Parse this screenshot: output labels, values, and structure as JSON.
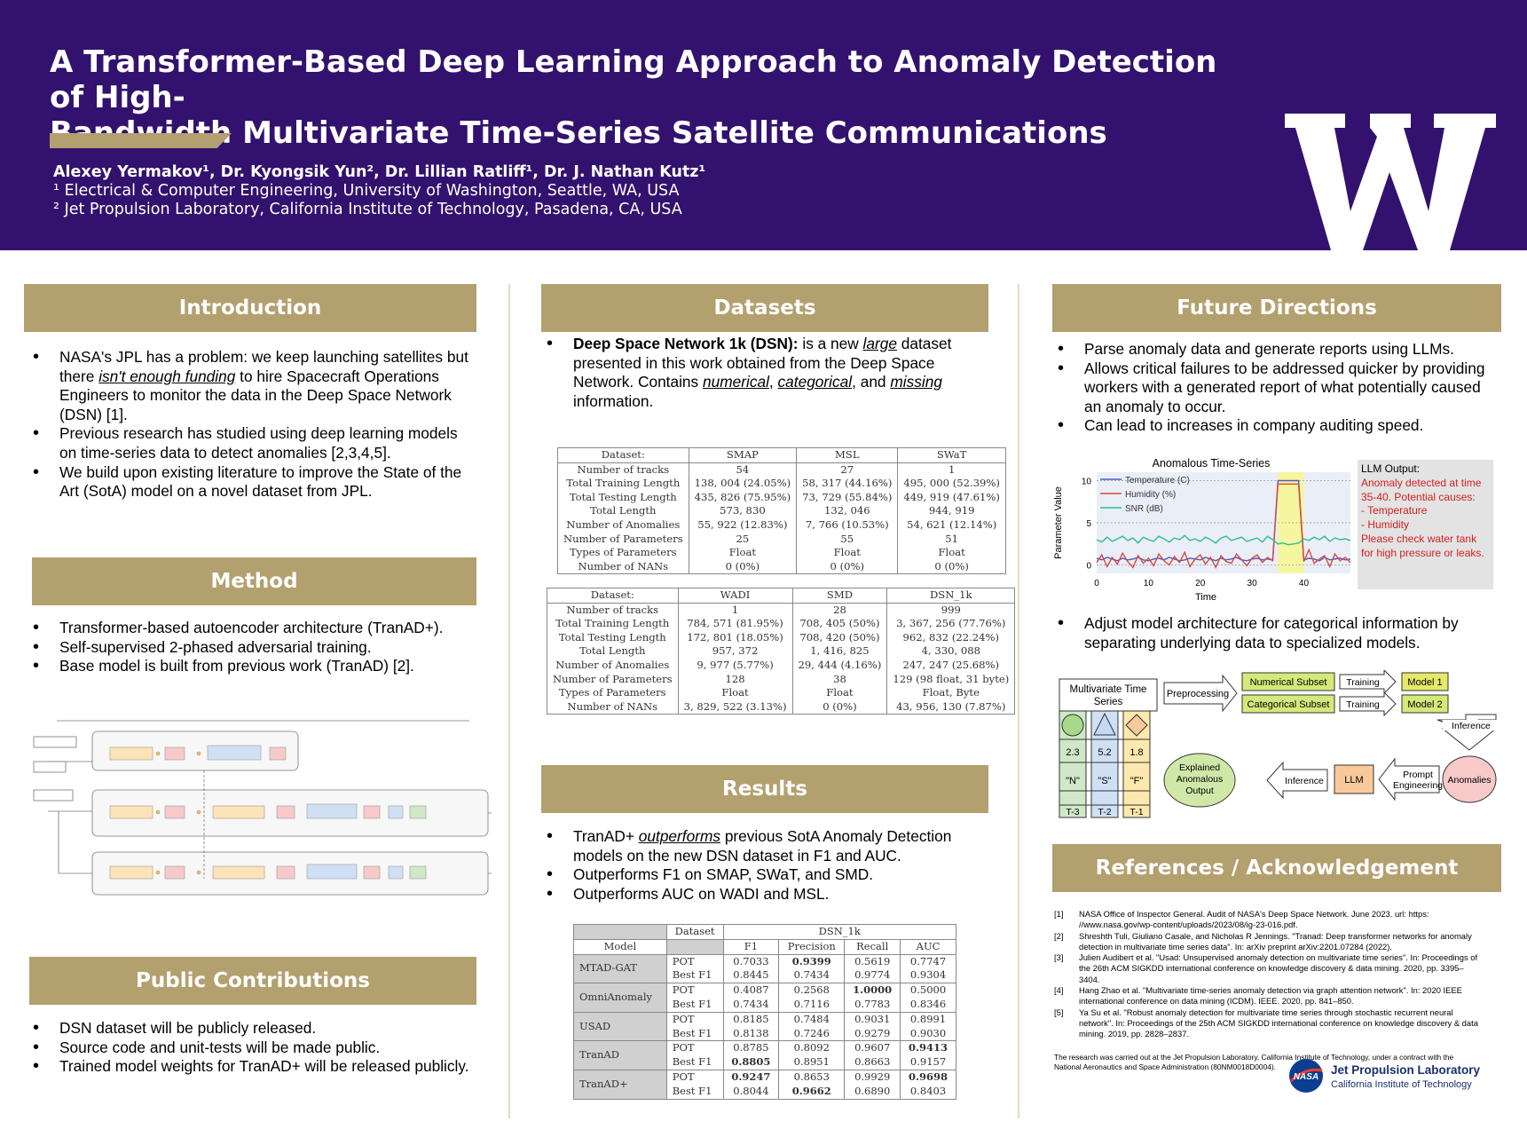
{
  "header": {
    "title_line1": "A Transformer-Based Deep Learning Approach to Anomaly Detection of High-",
    "title_line2": "Bandwidth Multivariate Time-Series Satellite Communications",
    "authors": "Alexey Yermakov¹, Dr. Kyongsik Yun², Dr. Lillian Ratliff¹, Dr. J. Nathan Kutz¹",
    "affiliation1": "¹ Electrical & Computer Engineering, University of Washington, Seattle, WA, USA",
    "affiliation2": "² Jet Propulsion Laboratory, California Institute of Technology, Pasadena, CA, USA",
    "logo": "W"
  },
  "colors": {
    "header_bg": "#32126e",
    "gold": "#b3a06f",
    "separator": "#e8d9bd"
  },
  "introduction": {
    "heading": "Introduction",
    "b1_pre": "NASA's JPL has a problem: we keep launching satellites but there ",
    "b1_em": "isn't enough funding",
    "b1_post": " to hire Spacecraft Operations Engineers to monitor the data in the Deep Space Network (DSN) [1].",
    "b2": "Previous research has studied using deep learning models on time-series data to detect anomalies [2,3,4,5].",
    "b3": "We build upon existing literature to improve the State of the Art (SotA) model on a novel dataset from JPL."
  },
  "method": {
    "heading": "Method",
    "b1": "Transformer-based autoencoder architecture (TranAD+).",
    "b2": "Self-supervised 2-phased adversarial training.",
    "b3": "Base model is built from previous work (TranAD) [2]."
  },
  "public": {
    "heading": "Public Contributions",
    "b1": "DSN dataset will be publicly released.",
    "b2": "Source code and unit-tests will be made public.",
    "b3": "Trained model weights for TranAD+ will be released publicly."
  },
  "datasets": {
    "heading": "Datasets",
    "intro_bold": "Deep Space Network 1k (DSN):",
    "intro_a": " is a new ",
    "intro_large": "large",
    "intro_b": " dataset presented in this work obtained from the Deep Space Network. Contains ",
    "intro_num": "numerical",
    "intro_c": ", ",
    "intro_cat": "categorical",
    "intro_d": ", and ",
    "intro_miss": "missing",
    "intro_e": " information.",
    "table1": {
      "headers": [
        "Dataset:",
        "SMAP",
        "MSL",
        "SWaT"
      ],
      "rows": [
        [
          "Number of tracks",
          "54",
          "27",
          "1"
        ],
        [
          "Total Training Length",
          "138, 004 (24.05%)",
          "58, 317 (44.16%)",
          "495, 000 (52.39%)"
        ],
        [
          "Total Testing Length",
          "435, 826 (75.95%)",
          "73, 729 (55.84%)",
          "449, 919 (47.61%)"
        ],
        [
          "Total Length",
          "573, 830",
          "132, 046",
          "944, 919"
        ],
        [
          "Number of Anomalies",
          "55, 922 (12.83%)",
          "7, 766 (10.53%)",
          "54, 621 (12.14%)"
        ],
        [
          "Number of Parameters",
          "25",
          "55",
          "51"
        ],
        [
          "Types of Parameters",
          "Float",
          "Float",
          "Float"
        ],
        [
          "Number of NANs",
          "0 (0%)",
          "0 (0%)",
          "0 (0%)"
        ]
      ]
    },
    "table2": {
      "headers": [
        "Dataset:",
        "WADI",
        "SMD",
        "DSN_1k"
      ],
      "rows": [
        [
          "Number of tracks",
          "1",
          "28",
          "999"
        ],
        [
          "Total Training Length",
          "784, 571 (81.95%)",
          "708, 405 (50%)",
          "3, 367, 256 (77.76%)"
        ],
        [
          "Total Testing Length",
          "172, 801 (18.05%)",
          "708, 420 (50%)",
          "962, 832 (22.24%)"
        ],
        [
          "Total Length",
          "957, 372",
          "1, 416, 825",
          "4, 330, 088"
        ],
        [
          "Number of Anomalies",
          "9, 977 (5.77%)",
          "29, 444 (4.16%)",
          "247, 247 (25.68%)"
        ],
        [
          "Number of Parameters",
          "128",
          "38",
          "129 (98 float, 31 byte)"
        ],
        [
          "Types of Parameters",
          "Float",
          "Float",
          "Float, Byte"
        ],
        [
          "Number of NANs",
          "3, 829, 522 (3.13%)",
          "0 (0%)",
          "43, 956, 130 (7.87%)"
        ]
      ]
    }
  },
  "results": {
    "heading": "Results",
    "b1_pre": "TranAD+ ",
    "b1_em": "outperforms",
    "b1_post": " previous SotA Anomaly Detection models on the new DSN dataset in F1 and AUC.",
    "b2": "Outperforms F1 on SMAP, SWaT, and SMD.",
    "b3": "Outperforms AUC on WADI and MSL.",
    "table": {
      "dataset_label": "Dataset",
      "dataset_name": "DSN_1k",
      "model_label": "Model",
      "metrics": [
        "F1",
        "Precision",
        "Recall",
        "AUC"
      ],
      "models": [
        {
          "name": "MTAD-GAT",
          "rows": [
            {
              "method": "POT",
              "v": [
                "0.7033",
                "0.9399",
                "0.5619",
                "0.7747"
              ],
              "bold": [
                false,
                true,
                false,
                false
              ]
            },
            {
              "method": "Best F1",
              "v": [
                "0.8445",
                "0.7434",
                "0.9774",
                "0.9304"
              ],
              "bold": [
                false,
                false,
                false,
                false
              ]
            }
          ]
        },
        {
          "name": "OmniAnomaly",
          "rows": [
            {
              "method": "POT",
              "v": [
                "0.4087",
                "0.2568",
                "1.0000",
                "0.5000"
              ],
              "bold": [
                false,
                false,
                true,
                false
              ]
            },
            {
              "method": "Best F1",
              "v": [
                "0.7434",
                "0.7116",
                "0.7783",
                "0.8346"
              ],
              "bold": [
                false,
                false,
                false,
                false
              ]
            }
          ]
        },
        {
          "name": "USAD",
          "rows": [
            {
              "method": "POT",
              "v": [
                "0.8185",
                "0.7484",
                "0.9031",
                "0.8991"
              ],
              "bold": [
                false,
                false,
                false,
                false
              ]
            },
            {
              "method": "Best F1",
              "v": [
                "0.8138",
                "0.7246",
                "0.9279",
                "0.9030"
              ],
              "bold": [
                false,
                false,
                false,
                false
              ]
            }
          ]
        },
        {
          "name": "TranAD",
          "rows": [
            {
              "method": "POT",
              "v": [
                "0.8785",
                "0.8092",
                "0.9607",
                "0.9413"
              ],
              "bold": [
                false,
                false,
                false,
                true
              ]
            },
            {
              "method": "Best F1",
              "v": [
                "0.8805",
                "0.8951",
                "0.8663",
                "0.9157"
              ],
              "bold": [
                true,
                false,
                false,
                false
              ]
            }
          ]
        },
        {
          "name": "TranAD+",
          "rows": [
            {
              "method": "POT",
              "v": [
                "0.9247",
                "0.8653",
                "0.9929",
                "0.9698"
              ],
              "bold": [
                true,
                false,
                false,
                true
              ]
            },
            {
              "method": "Best F1",
              "v": [
                "0.8044",
                "0.9662",
                "0.6890",
                "0.8403"
              ],
              "bold": [
                false,
                true,
                false,
                false
              ]
            }
          ]
        }
      ]
    }
  },
  "future": {
    "heading": "Future Directions",
    "b1": "Parse anomaly data and generate reports using LLMs.",
    "b2": "Allows critical failures to be addressed quicker by providing workers with a generated report of what potentially caused an anomaly to occur.",
    "b3": "Can lead to increases in company auditing speed.",
    "b4": "Adjust model architecture for categorical information by separating underlying data to specialized models.",
    "llm_box": {
      "title": "LLM Output:",
      "l1": "Anomaly detected at time",
      "l2": "35-40. Potential causes:",
      "l3": "- Temperature",
      "l4": "- Humidity",
      "l5": "Please check water tank",
      "l6": "for high pressure or leaks."
    },
    "flow": {
      "mts": "Multivariate Time Series",
      "preprocessing": "Preprocessing",
      "numerical": "Numerical Subset",
      "categorical": "Categorical Subset",
      "training1": "Training",
      "training2": "Training",
      "model1": "Model 1",
      "model2": "Model 2",
      "inference_top": "Inference",
      "anomalies": "Anomalies",
      "prompt": "Prompt Engineering",
      "llm": "LLM",
      "inference_mid": "Inference",
      "explained": "Explained Anomalous Output",
      "col_values": [
        "2.3",
        "5.2",
        "1.8"
      ],
      "col_letters": [
        "\"N\"",
        "\"S\"",
        "\"F\""
      ],
      "col_t": [
        "T-3",
        "T-2",
        "T-1"
      ]
    }
  },
  "chart_data": {
    "type": "line",
    "title": "Anomalous Time-Series",
    "xlabel": "Time",
    "ylabel": "Parameter Value",
    "xlim": [
      0,
      49
    ],
    "ylim": [
      -1,
      11
    ],
    "xticks": [
      "0",
      "10",
      "20",
      "30",
      "40"
    ],
    "yticks": [
      "0",
      "5",
      "10"
    ],
    "legend_position": "top-left",
    "highlight_region": [
      35,
      40
    ],
    "series": [
      {
        "name": "Temperature (C)",
        "color": "#4a5bc4",
        "values": [
          0.8,
          0.6,
          0.9,
          0.7,
          0.5,
          0.8,
          0.6,
          0.7,
          0.9,
          0.6,
          0.5,
          0.7,
          0.8,
          0.6,
          0.9,
          0.7,
          0.5,
          0.6,
          0.8,
          0.7,
          0.6,
          0.9,
          0.7,
          0.5,
          0.8,
          0.6,
          0.7,
          0.9,
          0.6,
          0.5,
          0.7,
          0.8,
          0.6,
          0.7,
          0.6,
          10.0,
          10.0,
          10.0,
          10.0,
          10.0,
          0.6,
          0.8,
          0.7,
          0.5,
          0.9,
          0.6,
          0.7,
          0.8,
          0.6,
          0.7
        ]
      },
      {
        "name": "Humidity (%)",
        "color": "#d94a3a",
        "values": [
          0.3,
          1.2,
          -0.2,
          0.9,
          0.1,
          1.4,
          0.4,
          -0.3,
          1.1,
          0.2,
          0.8,
          -0.1,
          1.3,
          0.5,
          0.0,
          1.0,
          0.3,
          1.5,
          -0.2,
          0.7,
          1.2,
          0.1,
          0.9,
          -0.3,
          1.1,
          0.4,
          0.2,
          1.3,
          0.6,
          -0.1,
          0.8,
          1.2,
          0.3,
          0.9,
          0.5,
          9.6,
          9.6,
          9.6,
          9.6,
          9.6,
          0.4,
          1.8,
          0.2,
          0.7,
          1.1,
          -0.2,
          1.3,
          0.5,
          0.9,
          0.3
        ]
      },
      {
        "name": "SNR (dB)",
        "color": "#2bbf8a",
        "values": [
          3.0,
          2.7,
          3.3,
          2.8,
          3.1,
          3.4,
          2.9,
          3.2,
          2.6,
          3.3,
          3.0,
          2.8,
          3.4,
          3.1,
          2.7,
          3.2,
          3.0,
          3.5,
          2.9,
          3.1,
          2.8,
          3.3,
          3.0,
          2.6,
          3.2,
          3.4,
          2.9,
          3.1,
          3.3,
          2.8,
          3.0,
          3.2,
          2.7,
          3.4,
          3.0,
          2.5,
          2.6,
          2.4,
          2.5,
          2.6,
          3.1,
          2.9,
          3.3,
          3.0,
          3.4,
          2.8,
          3.2,
          3.0,
          3.1,
          2.9
        ]
      }
    ]
  },
  "references": {
    "heading": "References / Acknowledgement",
    "items": [
      {
        "n": "[1]",
        "t": "NASA Office of Inspector General. Audit of NASA's Deep Space Network. June 2023. url: https: //www.nasa.gov/wp-content/uploads/2023/08/ig-23-016.pdf."
      },
      {
        "n": "[2]",
        "t": "Shreshth Tuli, Giuliano Casale, and Nicholas R Jennings. \"Tranad: Deep transformer networks for anomaly detection in multivariate time series data\". In: arXiv preprint arXiv:2201.07284 (2022)."
      },
      {
        "n": "[3]",
        "t": "Julien Audibert et al. \"Usad: Unsupervised anomaly detection on multivariate time series\". In: Proceedings of the 26th ACM SIGKDD international conference on knowledge discovery & data mining. 2020, pp. 3395–3404."
      },
      {
        "n": "[4]",
        "t": "Hang Zhao et al. \"Multivariate time-series anomaly detection via graph attention network\". In: 2020 IEEE international conference on data mining (ICDM). IEEE. 2020, pp. 841–850."
      },
      {
        "n": "[5]",
        "t": "Ya Su et al. \"Robust anomaly detection for multivariate time series through stochastic recurrent neural network\". In: Proceedings of the 25th ACM SIGKDD international conference on knowledge discovery & data mining. 2019, pp. 2828–2837."
      }
    ],
    "jpl_note": "The research was carried out at the Jet Propulsion Laboratory, California Institute of Technology, under a contract with the National Aeronautics and Space Administration (80NM0018D0004).",
    "nasa_logo": "NASA",
    "jpl_name": "Jet Propulsion Laboratory",
    "jpl_sub": "California Institute of Technology"
  }
}
